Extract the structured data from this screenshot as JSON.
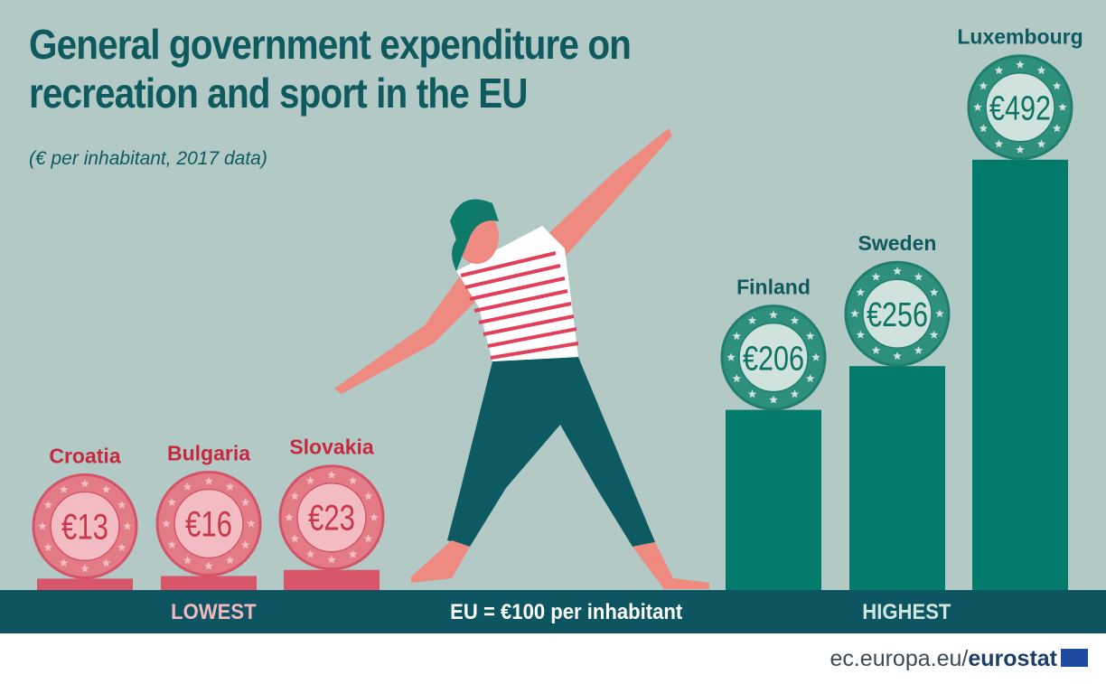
{
  "title_line1": "General government expenditure on",
  "title_line2": "recreation and sport in the EU",
  "subtitle": "(€ per inhabitant, 2017 data)",
  "band": {
    "lowest": "LOWEST",
    "eu": "EU = €100 per inhabitant",
    "highest": "HIGHEST"
  },
  "footer": {
    "domain": "ec.europa.eu/",
    "brand": "eurostat"
  },
  "colors": {
    "low": "#d9566a",
    "high": "#037b6c",
    "band": "#0d5560",
    "bg": "#b2c9c6"
  },
  "chart_data": {
    "type": "bar",
    "title": "General government expenditure on recreation and sport in the EU",
    "subtitle": "(€ per inhabitant, 2017 data)",
    "unit": "€ per inhabitant",
    "reference": {
      "label": "EU",
      "value": 100
    },
    "categories": [
      "Croatia",
      "Bulgaria",
      "Slovakia",
      "Finland",
      "Sweden",
      "Luxembourg"
    ],
    "values": [
      13,
      16,
      23,
      206,
      256,
      492
    ],
    "labels": [
      "€13",
      "€16",
      "€23",
      "€206",
      "€256",
      "€492"
    ],
    "groups": [
      "lowest",
      "lowest",
      "lowest",
      "highest",
      "highest",
      "highest"
    ]
  }
}
